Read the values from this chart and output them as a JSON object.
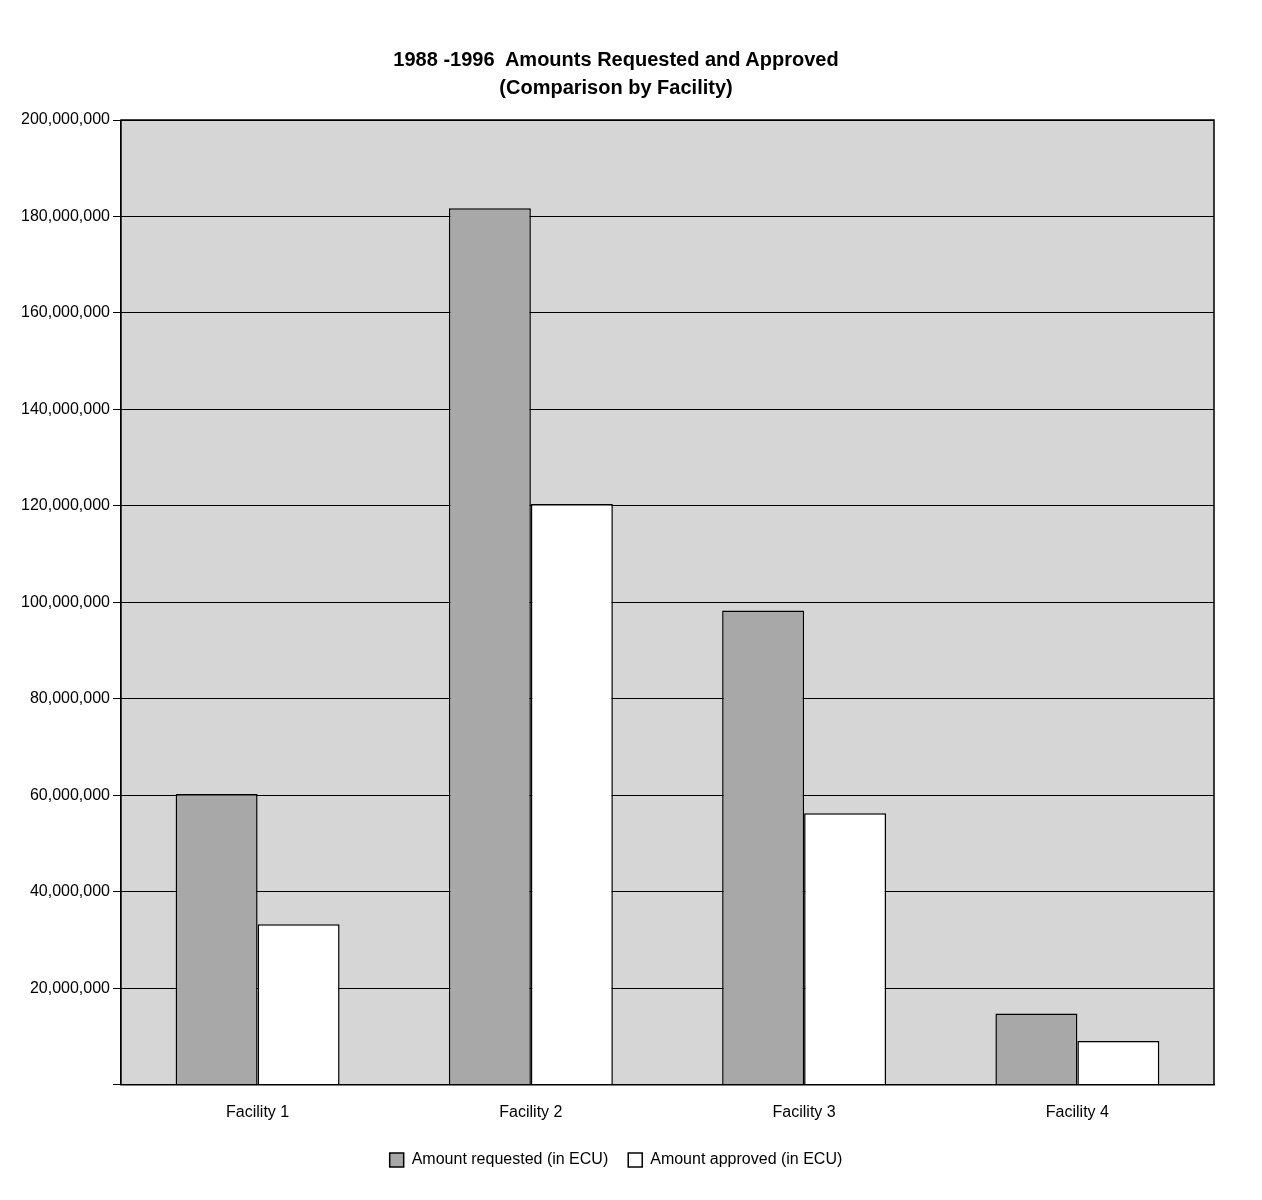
{
  "chart_data": {
    "type": "bar",
    "title": "1988 -1996  Amounts Requested and Approved",
    "subtitle": "(Comparison by Facility)",
    "categories": [
      "Facility 1",
      "Facility 2",
      "Facility 3",
      "Facility 4"
    ],
    "series": [
      {
        "name": "Amount requested (in ECU)",
        "color": "#a8a8a8",
        "values": [
          60300000,
          181700000,
          98300000,
          14800000
        ]
      },
      {
        "name": "Amount approved (in ECU)",
        "color": "#ffffff",
        "values": [
          33300000,
          120400000,
          56300000,
          9100000
        ]
      }
    ],
    "ylim": [
      0,
      200000000
    ],
    "yticks": [
      {
        "value": 0,
        "label": null
      },
      {
        "value": 20000000,
        "label": "20,000,000"
      },
      {
        "value": 40000000,
        "label": "40,000,000"
      },
      {
        "value": 60000000,
        "label": "60,000,000"
      },
      {
        "value": 80000000,
        "label": "80,000,000"
      },
      {
        "value": 100000000,
        "label": "100,000,000"
      },
      {
        "value": 120000000,
        "label": "120,000,000"
      },
      {
        "value": 140000000,
        "label": "140,000,000"
      },
      {
        "value": 160000000,
        "label": "160,000,000"
      },
      {
        "value": 180000000,
        "label": "180,000,000"
      },
      {
        "value": 200000000,
        "label": "200,000,000"
      }
    ],
    "grid": "y",
    "legend": "bottom"
  }
}
